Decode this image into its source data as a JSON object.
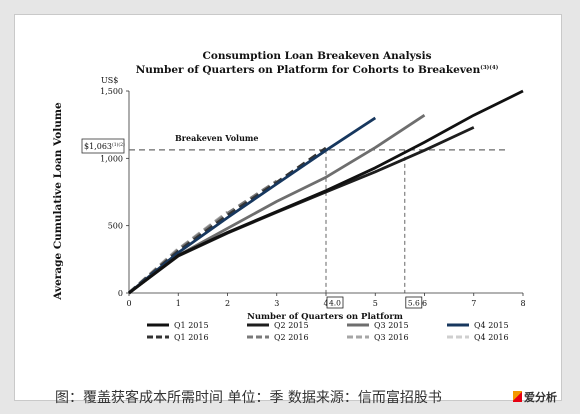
{
  "chart_data": {
    "type": "line",
    "title": "Consumption Loan Breakeven Analysis",
    "subtitle": "Number of Quarters on Platform for Cohorts to Breakeven",
    "subtitle_note": "(3)(4)",
    "xlabel": "Number of Quarters on Platform",
    "ylabel": "Average Cumulative Loan Volume",
    "yunit": "US$",
    "xlim": [
      0,
      8
    ],
    "ylim": [
      0,
      1500
    ],
    "xticks": [
      "0",
      "1",
      "2",
      "3",
      "4",
      "5",
      "6",
      "7",
      "8"
    ],
    "yticks": [
      "0",
      "500",
      "1,000",
      "1,500"
    ],
    "yticks_values": [
      0,
      500,
      1000,
      1500
    ],
    "grid": false,
    "legend_position": "bottom",
    "breakeven": {
      "label": "Breakeven Volume",
      "value": 1063,
      "value_label": "$1,063",
      "value_note": "(1)(2)",
      "markers": [
        {
          "x": 4.0,
          "label": "4.0"
        },
        {
          "x": 5.6,
          "label": "5.6"
        }
      ]
    },
    "series": [
      {
        "name": "Q1 2015",
        "color": "#111111",
        "dash": "solid",
        "x": [
          0,
          1,
          2,
          3,
          4,
          5,
          6,
          7,
          8
        ],
        "y": [
          0,
          280,
          450,
          605,
          760,
          930,
          1120,
          1320,
          1500
        ]
      },
      {
        "name": "Q2 2015",
        "color": "#1e1e1e",
        "dash": "solid",
        "x": [
          0,
          1,
          2,
          3,
          4,
          5,
          6,
          7
        ],
        "y": [
          0,
          275,
          445,
          600,
          750,
          900,
          1060,
          1230
        ]
      },
      {
        "name": "Q3 2015",
        "color": "#6e6e6e",
        "dash": "solid",
        "x": [
          0,
          1,
          2,
          3,
          4,
          5,
          6
        ],
        "y": [
          0,
          280,
          480,
          680,
          860,
          1080,
          1320
        ]
      },
      {
        "name": "Q4 2015",
        "color": "#17375e",
        "dash": "solid",
        "x": [
          0,
          1,
          2,
          3,
          4,
          5
        ],
        "y": [
          0,
          300,
          560,
          810,
          1060,
          1300
        ]
      },
      {
        "name": "Q1 2016",
        "color": "#333333",
        "dash": "dashed",
        "x": [
          0,
          1,
          2,
          3,
          4
        ],
        "y": [
          0,
          310,
          575,
          820,
          1075
        ]
      },
      {
        "name": "Q2 2016",
        "color": "#7a7a7a",
        "dash": "dashed",
        "x": [
          0,
          1,
          2,
          3
        ],
        "y": [
          0,
          320,
          590,
          830
        ]
      },
      {
        "name": "Q3 2016",
        "color": "#a6a6a6",
        "dash": "dashed",
        "x": [
          0,
          1,
          2
        ],
        "y": [
          0,
          325,
          600
        ]
      },
      {
        "name": "Q4 2016",
        "color": "#cfcfcf",
        "dash": "dashed",
        "x": [
          0,
          1
        ],
        "y": [
          0,
          330
        ]
      }
    ]
  },
  "caption": "图：覆盖获客成本所需时间  单位：季  数据来源：信而富招股书",
  "brand": "爱分析"
}
